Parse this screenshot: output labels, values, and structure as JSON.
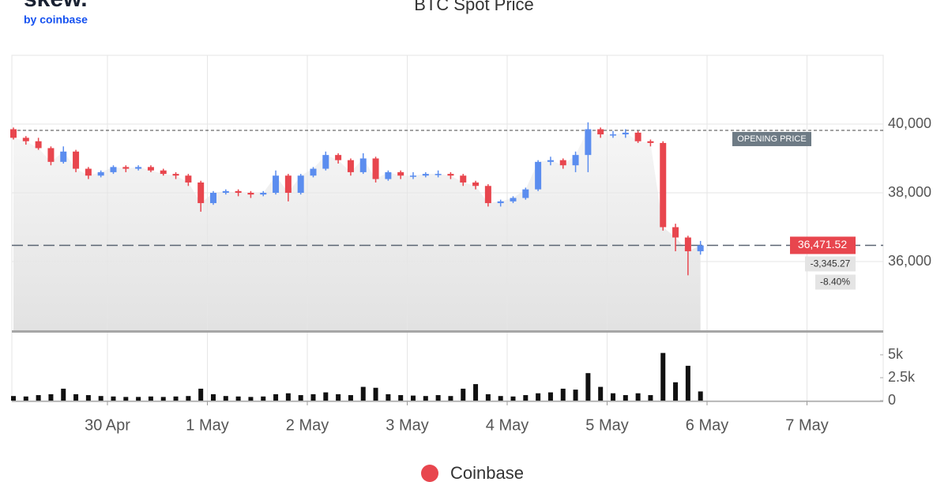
{
  "brand": {
    "logo": "skew.",
    "byline": "by coinbase"
  },
  "chart_data": {
    "type": "candlestick",
    "title": "BTC Spot Price",
    "xticks": [
      "30 Apr",
      "1 May",
      "2 May",
      "3 May",
      "4 May",
      "5 May",
      "6 May",
      "7 May"
    ],
    "open": [
      39850,
      39600,
      39500,
      39300,
      38900,
      39200,
      38700,
      38500,
      38600,
      38750,
      38700,
      38750,
      38650,
      38550,
      38500,
      38300,
      37700,
      38000,
      38050,
      38000,
      37950,
      38000,
      38500,
      38000,
      38500,
      38700,
      39100,
      38950,
      38600,
      39000,
      38400,
      38600,
      38500,
      38500,
      38550,
      38550,
      38500,
      38300,
      38200,
      37700,
      37750,
      37850,
      38100,
      38900,
      38950,
      38800,
      39100,
      39850,
      39700,
      39700,
      39750,
      39500,
      39450,
      37000,
      36700,
      36300
    ],
    "high": [
      39900,
      39650,
      39600,
      39350,
      39350,
      39250,
      38750,
      38650,
      38800,
      38800,
      38800,
      38800,
      38700,
      38600,
      38550,
      38350,
      38050,
      38100,
      38100,
      38050,
      38050,
      38650,
      38550,
      38550,
      38750,
      39200,
      39150,
      39000,
      39150,
      39050,
      38650,
      38650,
      38600,
      38600,
      38650,
      38600,
      38550,
      38350,
      38250,
      37800,
      37900,
      38150,
      38950,
      39050,
      39000,
      39200,
      40050,
      39900,
      39800,
      39850,
      39800,
      39550,
      39500,
      37100,
      36750,
      36600
    ],
    "low": [
      39550,
      39400,
      39250,
      38800,
      38850,
      38600,
      38400,
      38450,
      38550,
      38600,
      38650,
      38600,
      38500,
      38400,
      38200,
      37450,
      37650,
      37950,
      37900,
      37850,
      37900,
      37950,
      37750,
      37950,
      38450,
      38650,
      38850,
      38500,
      38550,
      38300,
      38350,
      38400,
      38400,
      38450,
      38450,
      38400,
      38200,
      38100,
      37600,
      37600,
      37700,
      37800,
      38050,
      38800,
      38700,
      38600,
      38600,
      39600,
      39600,
      39600,
      39450,
      39350,
      36900,
      36300,
      35600,
      36200
    ],
    "close": [
      39600,
      39500,
      39300,
      38900,
      39200,
      38700,
      38500,
      38600,
      38750,
      38700,
      38750,
      38650,
      38550,
      38500,
      38300,
      37700,
      38000,
      38050,
      38000,
      37950,
      38000,
      38500,
      38000,
      38500,
      38700,
      39100,
      38950,
      38600,
      39000,
      38400,
      38600,
      38500,
      38500,
      38550,
      38550,
      38500,
      38300,
      38200,
      37700,
      37750,
      37850,
      38100,
      38900,
      38950,
      38800,
      39100,
      39850,
      39700,
      39700,
      39750,
      39500,
      39450,
      37000,
      36700,
      36300,
      36471.52
    ],
    "volume": [
      500,
      450,
      600,
      700,
      1300,
      700,
      600,
      500,
      450,
      400,
      400,
      450,
      400,
      450,
      500,
      1300,
      700,
      500,
      450,
      400,
      450,
      700,
      800,
      600,
      700,
      900,
      700,
      600,
      1500,
      1400,
      700,
      600,
      550,
      500,
      600,
      500,
      1300,
      1800,
      700,
      500,
      450,
      600,
      800,
      900,
      1300,
      1200,
      3000,
      1500,
      800,
      600,
      800,
      600,
      5200,
      2000,
      3800,
      1000
    ],
    "ylim": [
      34000,
      42000
    ],
    "yticks": [
      {
        "value": 36000,
        "label": "36,000"
      },
      {
        "value": 38000,
        "label": "38,000"
      },
      {
        "value": 40000,
        "label": "40,000"
      }
    ],
    "volume_lim": [
      0,
      7500
    ],
    "volume_ticks": [
      0,
      {
        "value": 2500,
        "label": "2.5k"
      },
      {
        "value": 5000,
        "label": "5k"
      }
    ],
    "opening_price": 39816.79,
    "opening_price_label": "OPENING PRICE",
    "last_price_label": "36,471.52",
    "change_label": "-3,345.27",
    "change_pct_label": "-8.40%",
    "up_color": "#5b8def",
    "down_color": "#e8464e",
    "volume_color": "#111111",
    "legend": {
      "name": "Coinbase",
      "color": "#e8464e"
    },
    "grid": true
  }
}
